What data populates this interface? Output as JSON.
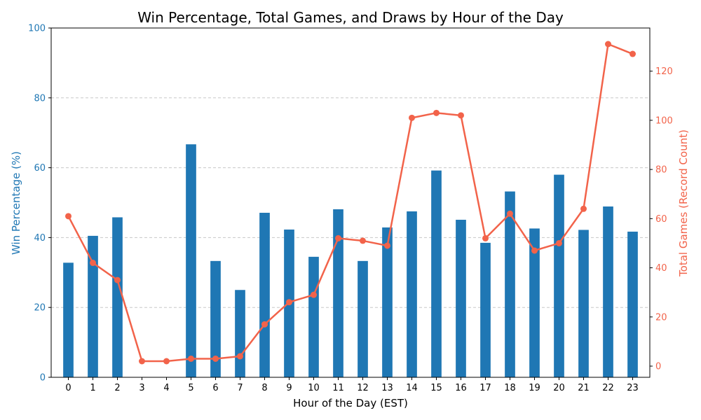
{
  "chart_data": {
    "type": "bar+line",
    "title": "Win Percentage, Total Games, and Draws by Hour of the Day",
    "xlabel": "Hour of the Day (EST)",
    "ylabel_left": "Win Percentage (%)",
    "ylabel_right": "Total Games (Record Count)",
    "categories": [
      "0",
      "1",
      "2",
      "3",
      "4",
      "5",
      "6",
      "7",
      "8",
      "9",
      "10",
      "11",
      "12",
      "13",
      "14",
      "15",
      "16",
      "17",
      "18",
      "19",
      "20",
      "21",
      "22",
      "23"
    ],
    "series": [
      {
        "kind": "bar",
        "axis": "left",
        "color": "#1f77b4",
        "values": [
          32.8,
          40.5,
          45.8,
          0,
          0,
          66.7,
          33.3,
          25.0,
          47.1,
          42.3,
          34.5,
          48.1,
          33.3,
          42.9,
          47.5,
          59.2,
          45.1,
          38.5,
          53.2,
          42.6,
          58.0,
          42.2,
          48.9,
          41.7
        ]
      },
      {
        "kind": "line",
        "axis": "right",
        "color": "#f2634a",
        "values": [
          61,
          42,
          35,
          2,
          2,
          3,
          3,
          4,
          17,
          26,
          29,
          52,
          51,
          49,
          101,
          103,
          102,
          52,
          62,
          47,
          50,
          64,
          131,
          127
        ]
      }
    ],
    "ylim_left": [
      0,
      100
    ],
    "ylim_right": [
      -4.55,
      137.55
    ],
    "yticks_left": [
      0,
      20,
      40,
      60,
      80,
      100
    ],
    "yticks_right": [
      0,
      20,
      40,
      60,
      80,
      100,
      120
    ],
    "grid": "horizontal dashed",
    "left_axis_color": "#1f77b4",
    "right_axis_color": "#f2634a"
  }
}
